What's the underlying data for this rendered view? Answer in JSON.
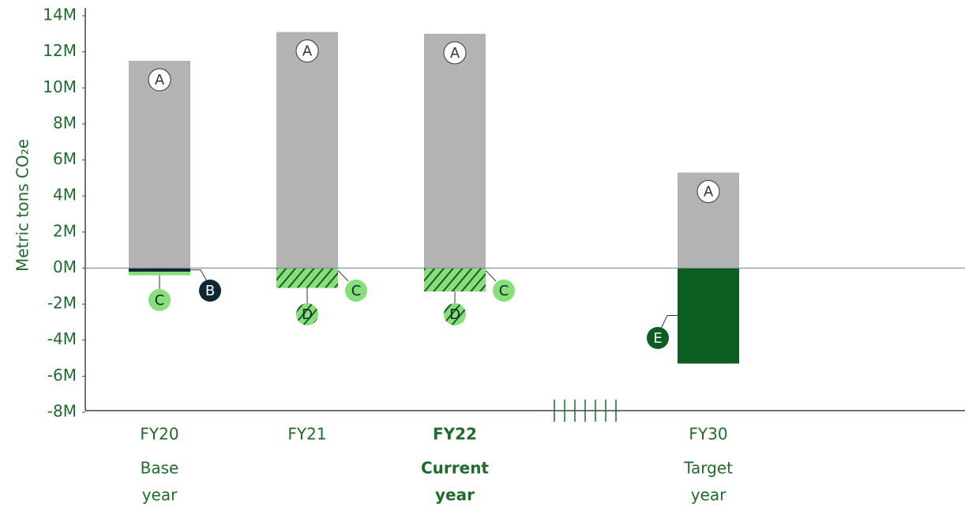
{
  "chart_data": {
    "type": "stacked_bar",
    "y_label": "Metric tons CO₂e",
    "categories": [
      "FY20",
      "FY21",
      "FY22",
      "FY30"
    ],
    "sublabels": [
      [
        "Base",
        "year"
      ],
      null,
      [
        "Current",
        "year"
      ],
      [
        "Target",
        "year"
      ]
    ],
    "highlight_index": 2,
    "series": [
      {
        "name": "A",
        "color": "#b3b3b3",
        "values": [
          11.5,
          13.1,
          13.0,
          5.3
        ]
      },
      {
        "name": "B",
        "color": "#0f2733",
        "values": [
          -0.2,
          null,
          null,
          null
        ]
      },
      {
        "name": "C",
        "color": "#86df78",
        "values": [
          -0.2,
          null,
          null,
          null
        ]
      },
      {
        "name": "D",
        "color": "#86df78",
        "hatch": "#1d5a25",
        "values": [
          null,
          -1.1,
          -1.3,
          null
        ]
      },
      {
        "name": "E",
        "color": "#0b5e1f",
        "values": [
          null,
          null,
          null,
          -5.3
        ]
      }
    ],
    "ylim": [
      -8,
      14
    ],
    "yticks": [
      {
        "value": -8,
        "label": "-8M"
      },
      {
        "value": -6,
        "label": "-6M"
      },
      {
        "value": -4,
        "label": "-4M"
      },
      {
        "value": -2,
        "label": "-2M"
      },
      {
        "value": 0,
        "label": "0M"
      },
      {
        "value": 2,
        "label": "2M"
      },
      {
        "value": 4,
        "label": "4M"
      },
      {
        "value": 6,
        "label": "6M"
      },
      {
        "value": 8,
        "label": "8M"
      },
      {
        "value": 10,
        "label": "10M"
      },
      {
        "value": 12,
        "label": "12M"
      },
      {
        "value": 14,
        "label": "14M"
      }
    ]
  }
}
